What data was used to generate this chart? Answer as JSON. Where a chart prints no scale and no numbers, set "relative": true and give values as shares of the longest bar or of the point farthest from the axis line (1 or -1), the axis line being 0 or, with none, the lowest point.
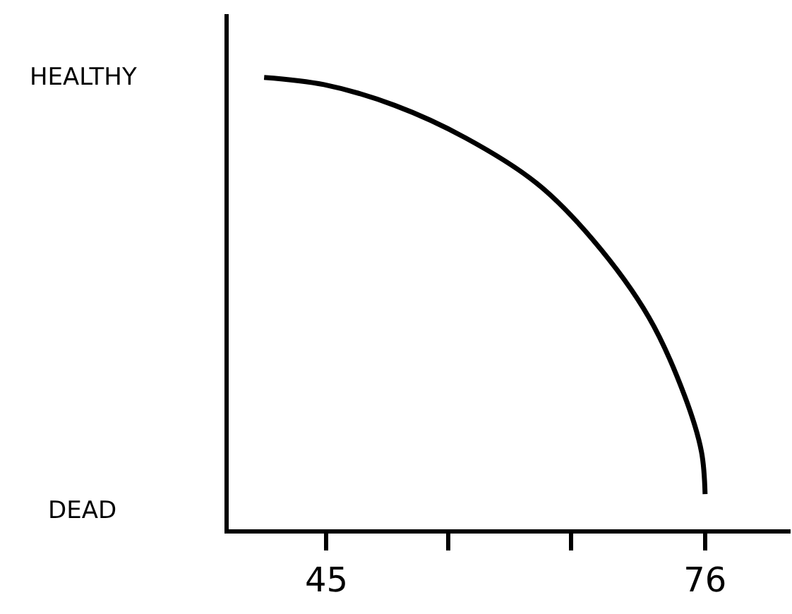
{
  "chart_data": {
    "type": "line",
    "relative": true,
    "x": [
      39.9,
      44.8,
      50.6,
      56.4,
      62.2,
      66.8,
      71.4,
      74.3,
      75.7,
      76
    ],
    "series": [
      {
        "color": "#000000",
        "values": [
          1,
          0.984,
          0.938,
          0.866,
          0.766,
          0.641,
          0.469,
          0.297,
          0.172,
          0.078
        ]
      }
    ],
    "xlim": [
      37,
      83
    ],
    "xticks": [
      45,
      {
        "value": 55,
        "label": null
      },
      {
        "value": 65,
        "label": null
      },
      76
    ],
    "annotations": [
      "HEALTHY",
      "DEAD"
    ],
    "marker": "none",
    "line_style": "solid"
  }
}
